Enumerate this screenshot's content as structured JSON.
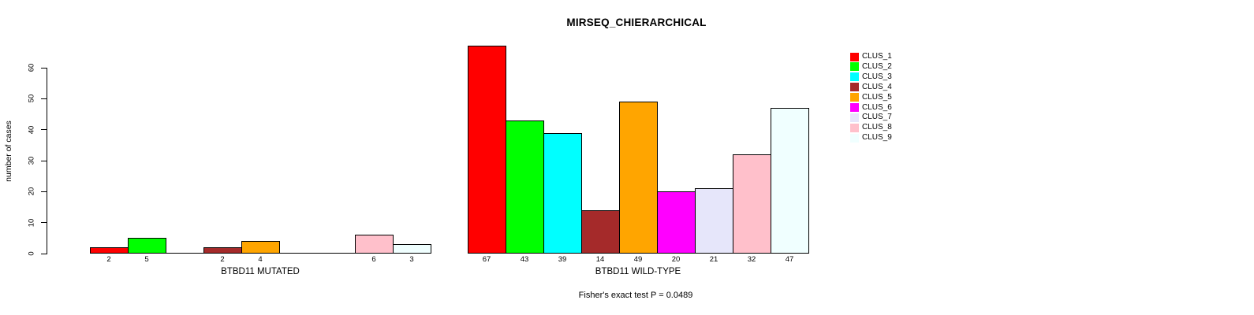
{
  "chart_data": {
    "type": "bar",
    "title": "MIRSEQ_CHIERARCHICAL",
    "ylabel": "number of cases",
    "xlabel": "",
    "ylim": [
      0,
      60
    ],
    "yticks": [
      0,
      10,
      20,
      30,
      40,
      50,
      60
    ],
    "grid": false,
    "legend_position": "right",
    "annotation": "Fisher's exact test P = 0.0489",
    "clusters": [
      "CLUS_1",
      "CLUS_2",
      "CLUS_3",
      "CLUS_4",
      "CLUS_5",
      "CLUS_6",
      "CLUS_7",
      "CLUS_8",
      "CLUS_9"
    ],
    "colors": [
      "#FF0000",
      "#00FF00",
      "#00FFFF",
      "#A52A2A",
      "#FFA500",
      "#FF00FF",
      "#E6E6FA",
      "#FFC0CB",
      "#F0FFFF"
    ],
    "groups": [
      {
        "label": "BTBD11 MUTATED",
        "values": [
          2,
          5,
          0,
          2,
          4,
          0,
          0,
          6,
          3
        ]
      },
      {
        "label": "BTBD11 WILD-TYPE",
        "values": [
          67,
          43,
          39,
          14,
          49,
          20,
          21,
          32,
          47
        ]
      }
    ]
  }
}
